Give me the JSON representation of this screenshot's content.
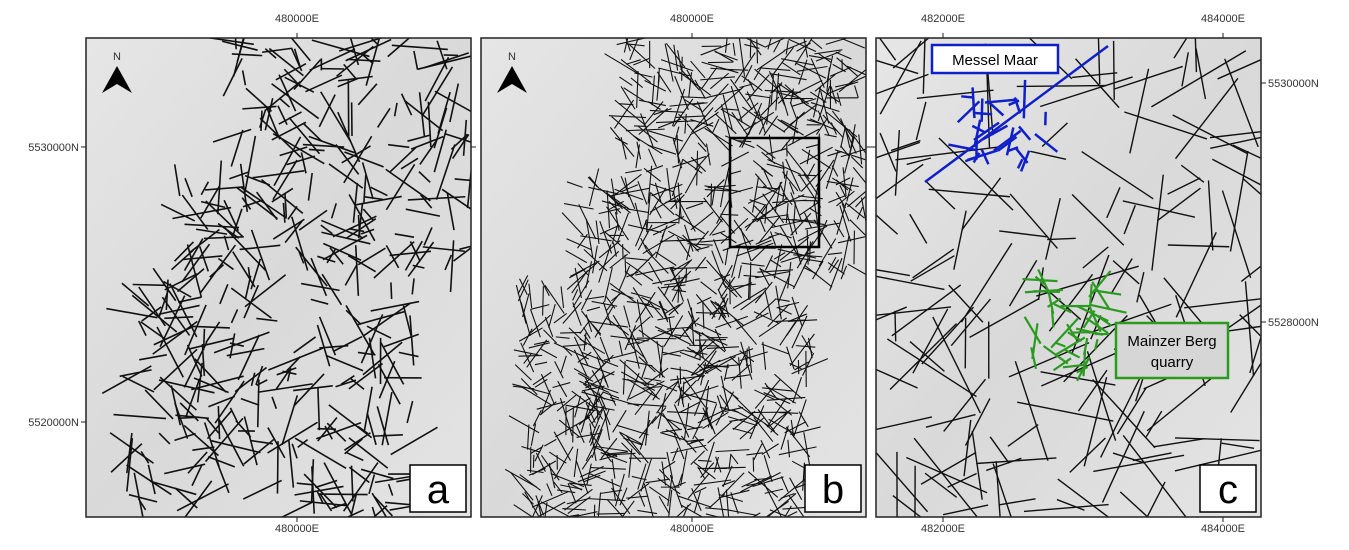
{
  "north_label": "N",
  "panels": [
    {
      "letter": "a",
      "top_ticks": [
        "480000E"
      ],
      "bottom_ticks": [
        "480000E"
      ],
      "left_ticks": [
        "5530000N",
        "5520000N"
      ]
    },
    {
      "letter": "b",
      "top_ticks": [
        "480000E"
      ],
      "bottom_ticks": [
        "480000E"
      ]
    },
    {
      "letter": "c",
      "top_ticks": [
        "482000E",
        "484000E"
      ],
      "bottom_ticks": [
        "482000E",
        "484000E"
      ],
      "right_ticks": [
        "5530000N",
        "5528000N"
      ],
      "annotations": [
        {
          "lines": [
            "Messel Maar"
          ]
        },
        {
          "lines": [
            "Mainzer Berg",
            "quarry"
          ]
        }
      ]
    }
  ]
}
